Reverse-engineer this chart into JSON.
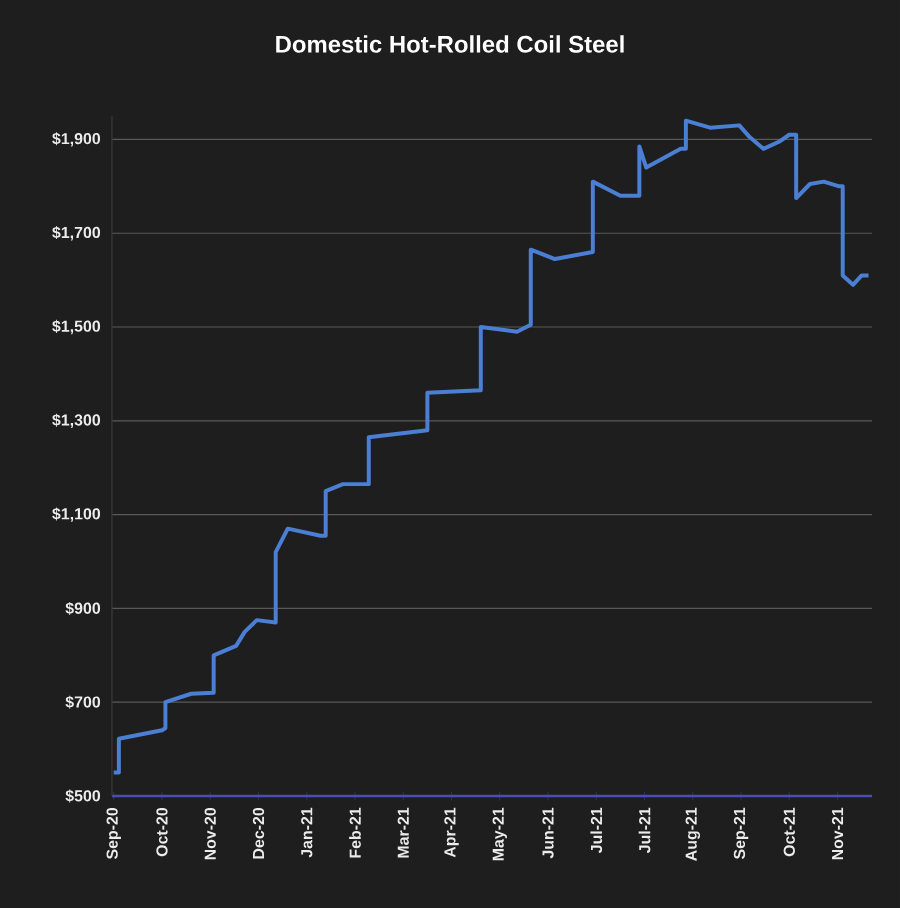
{
  "chart_data": {
    "type": "line",
    "title": "Domestic Hot-Rolled Coil Steel",
    "color": "#4a7fd4",
    "grid": "y",
    "marker": "none",
    "line_style": "solid",
    "x": [
      "2020-09-24",
      "2020-09-27",
      "2020-09-27",
      "2020-10-22",
      "2020-10-24",
      "2020-10-24",
      "2020-11-08",
      "2020-11-21",
      "2020-11-21",
      "2020-12-04",
      "2020-12-09",
      "2020-12-16",
      "2020-12-27",
      "2020-12-27",
      "2021-01-03",
      "2021-01-22",
      "2021-01-25",
      "2021-01-25",
      "2021-02-04",
      "2021-02-19",
      "2021-02-19",
      "2021-03-25",
      "2021-03-25",
      "2021-04-25",
      "2021-04-25",
      "2021-05-16",
      "2021-05-24",
      "2021-05-24",
      "2021-06-07",
      "2021-06-29",
      "2021-06-29",
      "2021-07-15",
      "2021-07-26",
      "2021-07-26",
      "2021-07-30",
      "2021-08-19",
      "2021-08-22",
      "2021-08-22",
      "2021-09-05",
      "2021-09-22",
      "2021-09-28",
      "2021-10-06",
      "2021-10-15",
      "2021-10-21",
      "2021-10-25",
      "2021-10-25",
      "2021-11-02",
      "2021-11-10",
      "2021-11-19",
      "2021-11-21",
      "2021-11-21",
      "2021-11-27",
      "2021-12-02",
      "2021-12-06"
    ],
    "values": [
      550,
      550,
      622,
      640,
      645,
      700,
      718,
      720,
      800,
      820,
      850,
      875,
      870,
      1020,
      1070,
      1055,
      1055,
      1150,
      1165,
      1165,
      1265,
      1280,
      1360,
      1365,
      1500,
      1490,
      1505,
      1665,
      1645,
      1660,
      1810,
      1780,
      1780,
      1885,
      1840,
      1880,
      1880,
      1940,
      1925,
      1930,
      1905,
      1880,
      1895,
      1910,
      1910,
      1775,
      1805,
      1810,
      1800,
      1800,
      1610,
      1590,
      1610,
      1610
    ],
    "xlim": [
      "2020-09-23",
      "2021-12-08"
    ],
    "ylim": [
      500,
      1950
    ],
    "xticks": [
      {
        "value": "2020-09-24",
        "label": "Sep-20"
      },
      {
        "value": "2020-10-22",
        "label": "Oct-20"
      },
      {
        "value": "2020-11-19",
        "label": "Nov-20"
      },
      {
        "value": "2020-12-17",
        "label": "Dec-20"
      },
      {
        "value": "2021-01-14",
        "label": "Jan-21"
      },
      {
        "value": "2021-02-11",
        "label": "Feb-21"
      },
      {
        "value": "2021-03-11",
        "label": "Mar-21"
      },
      {
        "value": "2021-04-08",
        "label": "Apr-21"
      },
      {
        "value": "2021-05-06",
        "label": "May-21"
      },
      {
        "value": "2021-06-03",
        "label": "Jun-21"
      },
      {
        "value": "2021-07-01",
        "label": "Jul-21"
      },
      {
        "value": "2021-07-29",
        "label": "Jul-21"
      },
      {
        "value": "2021-08-26",
        "label": "Aug-21"
      },
      {
        "value": "2021-09-23",
        "label": "Sep-21"
      },
      {
        "value": "2021-10-21",
        "label": "Oct-21"
      },
      {
        "value": "2021-11-18",
        "label": "Nov-21"
      }
    ],
    "yticks": [
      {
        "value": 500,
        "label": "$500"
      },
      {
        "value": 700,
        "label": "$700"
      },
      {
        "value": 900,
        "label": "$900"
      },
      {
        "value": 1100,
        "label": "$1,100"
      },
      {
        "value": 1300,
        "label": "$1,300"
      },
      {
        "value": 1500,
        "label": "$1,500"
      },
      {
        "value": 1700,
        "label": "$1,700"
      },
      {
        "value": 1900,
        "label": "$1,900"
      }
    ]
  }
}
